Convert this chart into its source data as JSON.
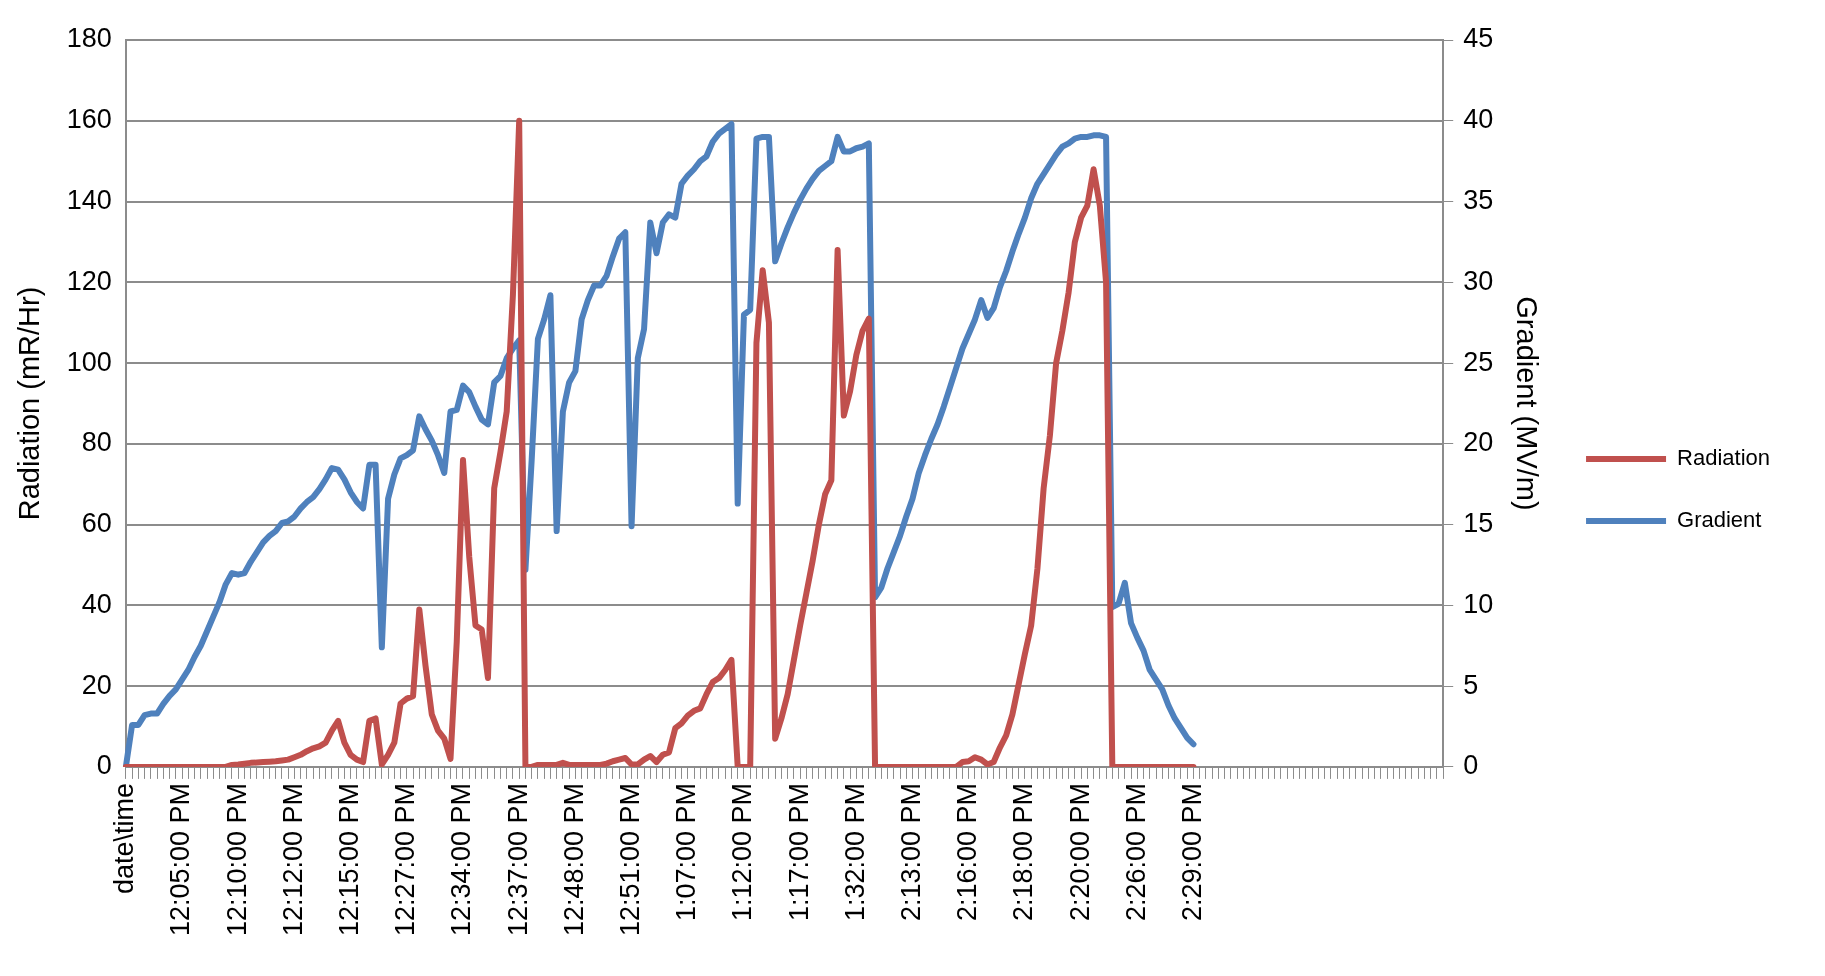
{
  "chart_data": {
    "type": "line",
    "xlabel": null,
    "ylabel": "Radiation (mR/Hr)",
    "y2label": "Gradient (MV/m)",
    "categories": [
      "date\\time",
      null,
      null,
      null,
      null,
      null,
      null,
      null,
      null,
      "12:05:00 PM",
      null,
      null,
      null,
      null,
      null,
      null,
      null,
      null,
      "12:10:00 PM",
      null,
      null,
      null,
      null,
      null,
      null,
      null,
      null,
      "12:12:00 PM",
      null,
      null,
      null,
      null,
      null,
      null,
      null,
      null,
      "12:15:00 PM",
      null,
      null,
      null,
      null,
      null,
      null,
      null,
      null,
      "12:27:00 PM",
      null,
      null,
      null,
      null,
      null,
      null,
      null,
      null,
      "12:34:00 PM",
      null,
      null,
      null,
      null,
      null,
      null,
      null,
      null,
      "12:37:00 PM",
      null,
      null,
      null,
      null,
      null,
      null,
      null,
      null,
      "12:48:00 PM",
      null,
      null,
      null,
      null,
      null,
      null,
      null,
      null,
      "12:51:00 PM",
      null,
      null,
      null,
      null,
      null,
      null,
      null,
      null,
      "1:07:00 PM",
      null,
      null,
      null,
      null,
      null,
      null,
      null,
      null,
      "1:12:00 PM",
      null,
      null,
      null,
      null,
      null,
      null,
      null,
      null,
      "1:17:00 PM",
      null,
      null,
      null,
      null,
      null,
      null,
      null,
      null,
      "1:32:00 PM",
      null,
      null,
      null,
      null,
      null,
      null,
      null,
      null,
      "2:13:00 PM",
      null,
      null,
      null,
      null,
      null,
      null,
      null,
      null,
      "2:16:00 PM",
      null,
      null,
      null,
      null,
      null,
      null,
      null,
      null,
      "2:18:00 PM",
      null,
      null,
      null,
      null,
      null,
      null,
      null,
      null,
      "2:20:00 PM",
      null,
      null,
      null,
      null,
      null,
      null,
      null,
      null,
      "2:26:00 PM",
      null,
      null,
      null,
      null,
      null,
      null,
      null,
      null,
      "2:29:00 PM",
      null,
      null,
      null,
      null,
      null,
      null,
      null,
      null,
      null,
      null,
      null,
      null,
      null,
      null,
      null,
      null,
      null,
      null,
      null,
      null,
      null,
      null,
      null,
      null,
      null,
      null,
      null,
      null,
      null,
      null,
      null,
      null,
      null,
      null,
      null,
      null,
      null,
      null,
      null,
      null
    ],
    "series": [
      {
        "name": "Radiation",
        "color": "#c0504d",
        "values": [
          0,
          0,
          0,
          0,
          0,
          0,
          0,
          0,
          0,
          0,
          0,
          0,
          0,
          0,
          0,
          0,
          0,
          0.5,
          0.6,
          0.8,
          1,
          1.1,
          1.2,
          1.3,
          1.4,
          1.6,
          1.8,
          2.4,
          3,
          3.9,
          4.6,
          5.1,
          6,
          9,
          11.4,
          6,
          3,
          1.8,
          1.2,
          11.4,
          12,
          0.6,
          3,
          6,
          15.7,
          16.9,
          17.5,
          39,
          25,
          13,
          9,
          7,
          2,
          31,
          76,
          52,
          35,
          34,
          22,
          69,
          78,
          88,
          117,
          160,
          0,
          0,
          0.5,
          0.5,
          0.5,
          0.5,
          1,
          0.5,
          0.5,
          0.5,
          0.5,
          0.5,
          0.5,
          0.8,
          1.4,
          1.8,
          2.2,
          0.6,
          0.6,
          1.8,
          2.7,
          1.2,
          3,
          3.6,
          9.6,
          10.8,
          12.7,
          13.9,
          14.5,
          18,
          21,
          22,
          24,
          26.5,
          0,
          0,
          0,
          105,
          123,
          110,
          7,
          12,
          18,
          26.5,
          35,
          43,
          51,
          60,
          67.5,
          71,
          128,
          87,
          93,
          102,
          108,
          111,
          0,
          0,
          0,
          0,
          0,
          0,
          0,
          0,
          0,
          0,
          0,
          0,
          0,
          0,
          1.2,
          1.4,
          2.4,
          1.8,
          0.6,
          1.2,
          4.8,
          7.8,
          13,
          20.5,
          28,
          35,
          49,
          69,
          82,
          100,
          108,
          117.5,
          130,
          136,
          139,
          148,
          139,
          120,
          0,
          0,
          0,
          0,
          0,
          0,
          0,
          0,
          0,
          0,
          0,
          0,
          0,
          0,
          null,
          null,
          null,
          null,
          null,
          null,
          null,
          null,
          null,
          null,
          null,
          null,
          null,
          null,
          null,
          null,
          null,
          null,
          null,
          null,
          null,
          null,
          null,
          null,
          null,
          null,
          null,
          null,
          null,
          null,
          null,
          null,
          null,
          null,
          null,
          null,
          null,
          null,
          null,
          null
        ]
      },
      {
        "name": "Gradient",
        "color": "#4f81bd",
        "axis": "y2",
        "values": [
          0,
          2.6,
          2.6,
          3.2,
          3.3,
          3.3,
          3.9,
          4.4,
          4.8,
          5.4,
          6,
          6.8,
          7.5,
          8.4,
          9.3,
          10.2,
          11.3,
          12,
          11.9,
          12,
          12.7,
          13.3,
          13.9,
          14.3,
          14.6,
          15.1,
          15.2,
          15.5,
          16,
          16.4,
          16.7,
          17.2,
          17.8,
          18.5,
          18.4,
          17.8,
          17,
          16.4,
          16,
          18.7,
          18.7,
          7.4,
          16.6,
          18.1,
          19.1,
          19.3,
          19.6,
          21.7,
          20.9,
          20.2,
          19.3,
          18.2,
          22,
          22.1,
          23.6,
          23.2,
          22.3,
          21.5,
          21.2,
          23.8,
          24.2,
          25.3,
          25.9,
          26.4,
          12.2,
          19,
          26.5,
          27.7,
          29.2,
          14.6,
          22,
          23.8,
          24.5,
          27.7,
          28.9,
          29.8,
          29.8,
          30.4,
          31.6,
          32.7,
          33.1,
          14.9,
          25.3,
          27.1,
          33.7,
          31.8,
          33.7,
          34.2,
          34,
          36.1,
          36.6,
          37,
          37.5,
          37.8,
          38.7,
          39.2,
          39.5,
          39.8,
          16.3,
          28,
          28.3,
          38.9,
          39,
          39,
          31.3,
          32.4,
          33.4,
          34.3,
          35.1,
          35.8,
          36.4,
          36.9,
          37.2,
          37.5,
          39,
          38.1,
          38.1,
          38.3,
          38.4,
          38.6,
          10.5,
          11.1,
          12.3,
          13.3,
          14.3,
          15.5,
          16.6,
          18.2,
          19.3,
          20.3,
          21.2,
          22.3,
          23.5,
          24.7,
          25.9,
          26.8,
          27.7,
          28.9,
          27.8,
          28.4,
          29.7,
          30.7,
          31.9,
          33,
          34,
          35.2,
          36.1,
          36.7,
          37.3,
          37.9,
          38.4,
          38.6,
          38.9,
          39,
          39,
          39.1,
          39.1,
          39,
          9.9,
          10.1,
          11.4,
          8.9,
          8,
          7.2,
          6,
          5.4,
          4.8,
          3.8,
          3,
          2.4,
          1.8,
          1.4,
          null,
          null,
          null,
          null,
          null,
          null,
          null,
          null,
          null,
          null,
          null,
          null,
          null,
          null,
          null,
          null,
          null,
          null,
          null,
          null,
          null,
          null,
          null,
          null,
          null,
          null,
          null,
          null,
          null,
          null,
          null,
          null,
          null,
          null,
          null,
          null,
          null,
          null,
          null,
          null
        ]
      }
    ],
    "ylim": [
      0,
      180
    ],
    "yticks": [
      0,
      20,
      40,
      60,
      80,
      100,
      120,
      140,
      160,
      180
    ],
    "y2lim": [
      0,
      45
    ],
    "y2ticks": [
      0,
      5,
      10,
      15,
      20,
      25,
      30,
      35,
      40,
      45
    ],
    "grid": "y",
    "legend": "right",
    "marker": "none",
    "line_style": "solid"
  }
}
